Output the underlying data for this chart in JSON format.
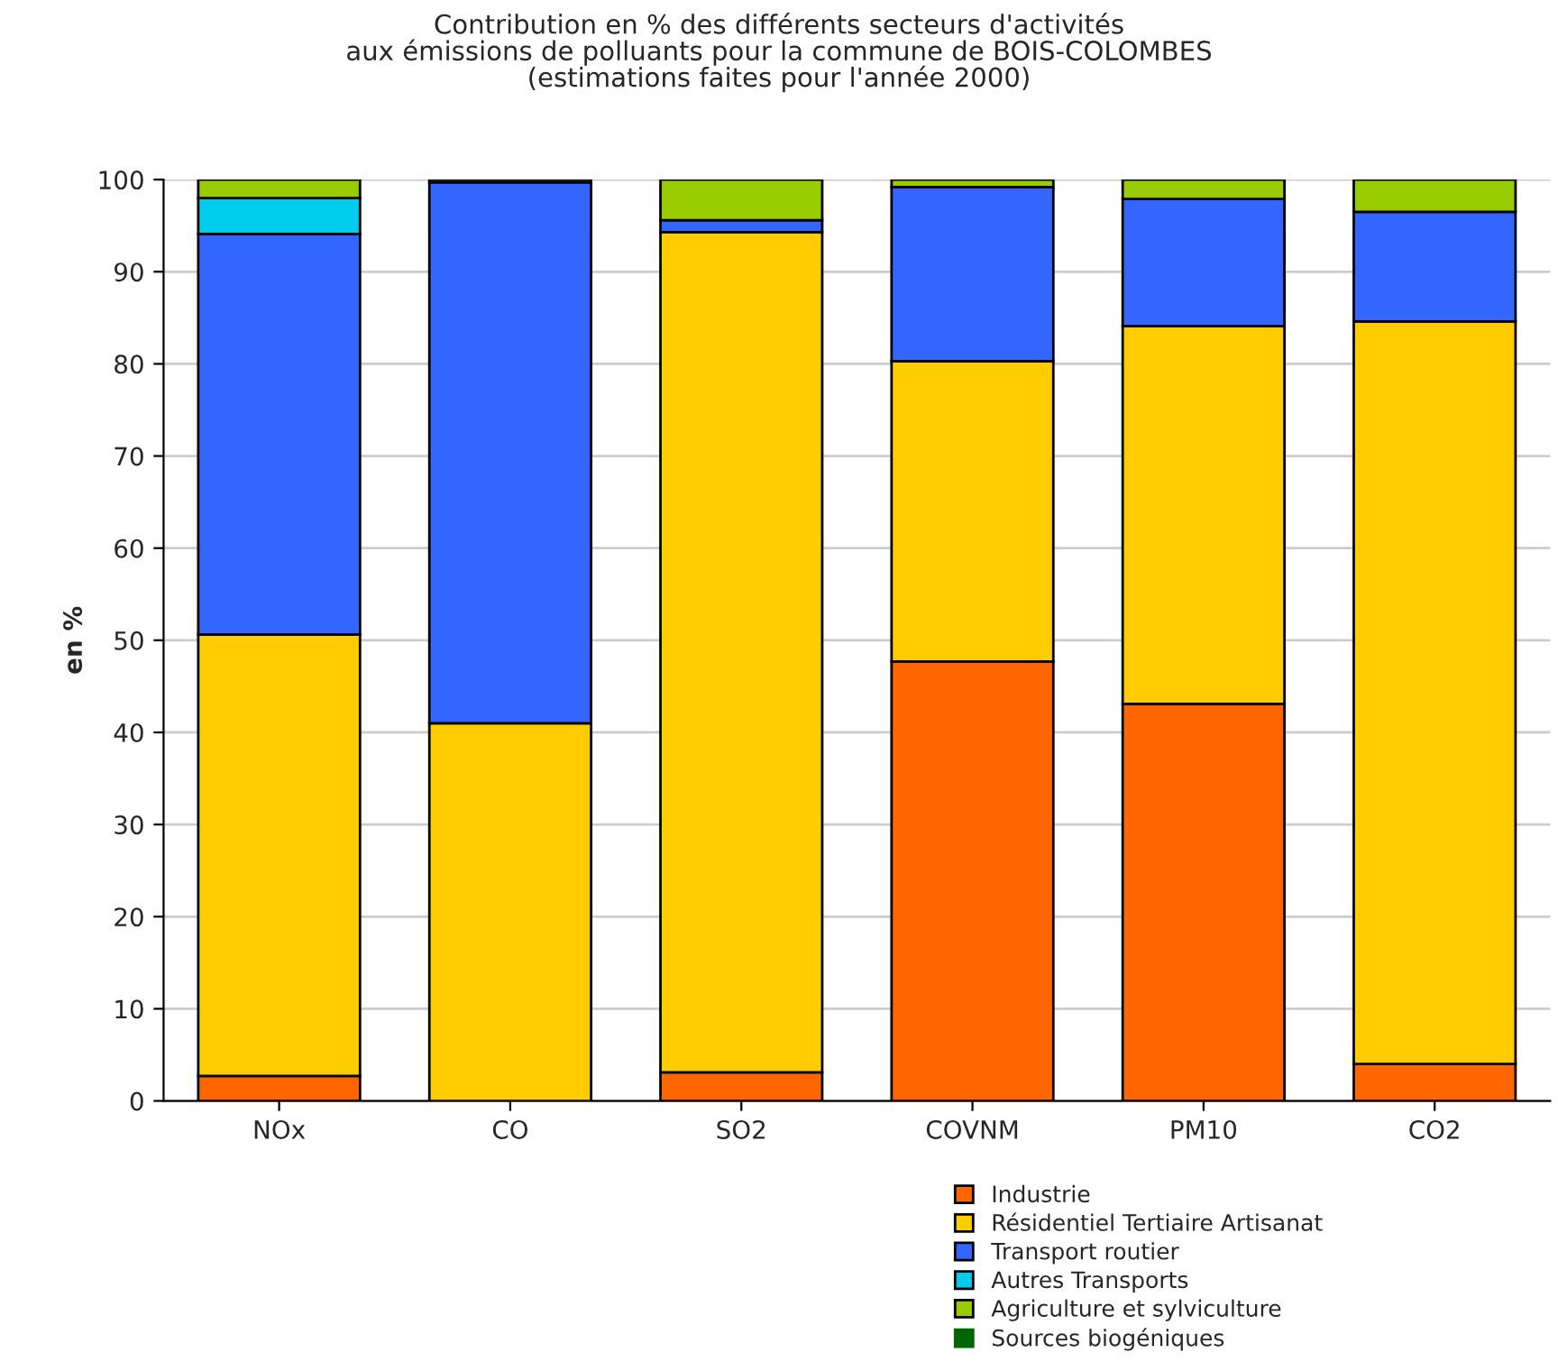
{
  "chart_data": {
    "type": "bar",
    "title": "Contribution en % des différents secteurs d'activités\naux émissions de polluants pour la commune de BOIS-COLOMBES\n(estimations faites pour l'année 2000)",
    "ylabel": "en %",
    "categories": [
      "NOx",
      "CO",
      "SO2",
      "COVNM",
      "PM10",
      "CO2"
    ],
    "stacked": true,
    "series": [
      {
        "name": "Industrie",
        "color": "#ff6600",
        "values": [
          2.7,
          null,
          3.1,
          47.7,
          43.1,
          4.0
        ]
      },
      {
        "name": "Résidentiel Tertiaire Artisanat",
        "color": "#ffcc00",
        "values": [
          47.9,
          41.0,
          91.2,
          32.6,
          41.0,
          80.6
        ]
      },
      {
        "name": "Transport routier",
        "color": "#3366ff",
        "values": [
          43.5,
          58.7,
          1.3,
          18.9,
          13.8,
          11.9
        ]
      },
      {
        "name": "Autres Transports",
        "color": "#00ccee",
        "values": [
          3.9,
          null,
          null,
          null,
          null,
          null
        ]
      },
      {
        "name": "Agriculture et sylviculture",
        "color": "#99cc00",
        "values": [
          2.0,
          0.3,
          4.4,
          0.8,
          2.1,
          3.5
        ]
      },
      {
        "name": "Sources biogéniques",
        "color": "#006600",
        "values": [
          null,
          null,
          null,
          null,
          null,
          null
        ]
      }
    ],
    "ylim": [
      0,
      100
    ],
    "yticks": [
      0,
      10,
      20,
      30,
      40,
      50,
      60,
      70,
      80,
      90,
      100
    ],
    "grid": "y",
    "legend": "bottom"
  }
}
